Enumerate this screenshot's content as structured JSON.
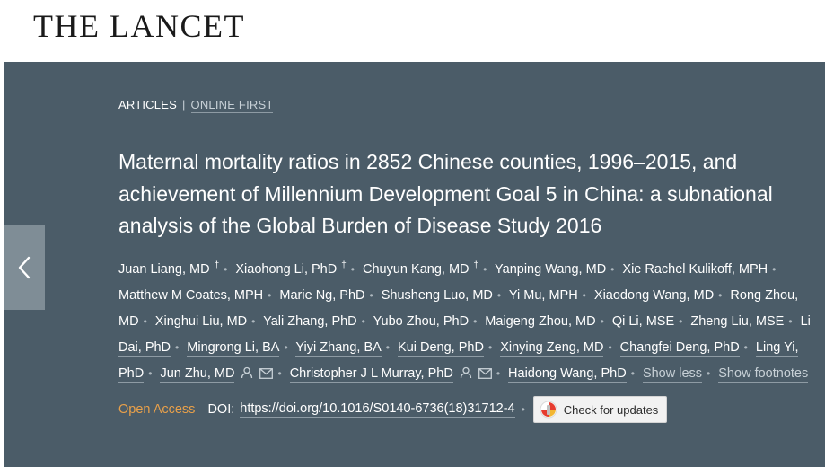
{
  "header": {
    "logo_text": "THE LANCET"
  },
  "breadcrumb": {
    "section": "ARTICLES",
    "separator": "|",
    "status": "ONLINE FIRST"
  },
  "article": {
    "title": "Maternal mortality ratios in 2852 Chinese counties, 1996–2015, and achievement of Millennium Development Goal 5 in China: a subnational analysis of the Global Burden of Disease Study 2016",
    "authors": [
      {
        "name": "Juan Liang, MD",
        "marker": "†"
      },
      {
        "name": "Xiaohong Li, PhD",
        "marker": "†"
      },
      {
        "name": "Chuyun Kang, MD",
        "marker": "†"
      },
      {
        "name": "Yanping Wang, MD"
      },
      {
        "name": "Xie Rachel Kulikoff, MPH"
      },
      {
        "name": "Matthew M Coates, MPH"
      },
      {
        "name": "Marie Ng, PhD"
      },
      {
        "name": "Shusheng Luo, MD"
      },
      {
        "name": "Yi Mu, MPH"
      },
      {
        "name": "Xiaodong Wang, MD"
      },
      {
        "name": "Rong Zhou, MD"
      },
      {
        "name": "Xinghui Liu, MD"
      },
      {
        "name": "Yali Zhang, PhD"
      },
      {
        "name": "Yubo Zhou, PhD"
      },
      {
        "name": "Maigeng Zhou, MD"
      },
      {
        "name": "Qi Li, MSE"
      },
      {
        "name": "Zheng Liu, MSE"
      },
      {
        "name": "Li Dai, PhD"
      },
      {
        "name": "Mingrong Li, BA"
      },
      {
        "name": "Yiyi Zhang, BA"
      },
      {
        "name": "Kui Deng, PhD"
      },
      {
        "name": "Xinying Zeng, MD"
      },
      {
        "name": "Changfei Deng, PhD"
      },
      {
        "name": "Ling Yi, PhD"
      },
      {
        "name": "Jun Zhu, MD",
        "icons": [
          "person-icon",
          "envelope-icon"
        ]
      },
      {
        "name": "Christopher J L Murray, PhD",
        "icons": [
          "person-icon",
          "envelope-icon"
        ]
      },
      {
        "name": "Haidong Wang, PhD"
      }
    ],
    "show_less": "Show less",
    "show_footnotes": "Show footnotes",
    "open_access": "Open Access",
    "doi_label": "DOI:",
    "doi": "https://doi.org/10.1016/S0140-6736(18)31712-4",
    "check_updates": "Check for updates"
  },
  "colors": {
    "hero_background": "#4b5c68",
    "open_access": "#e8a04a",
    "nav_button": "#7f8d96"
  }
}
